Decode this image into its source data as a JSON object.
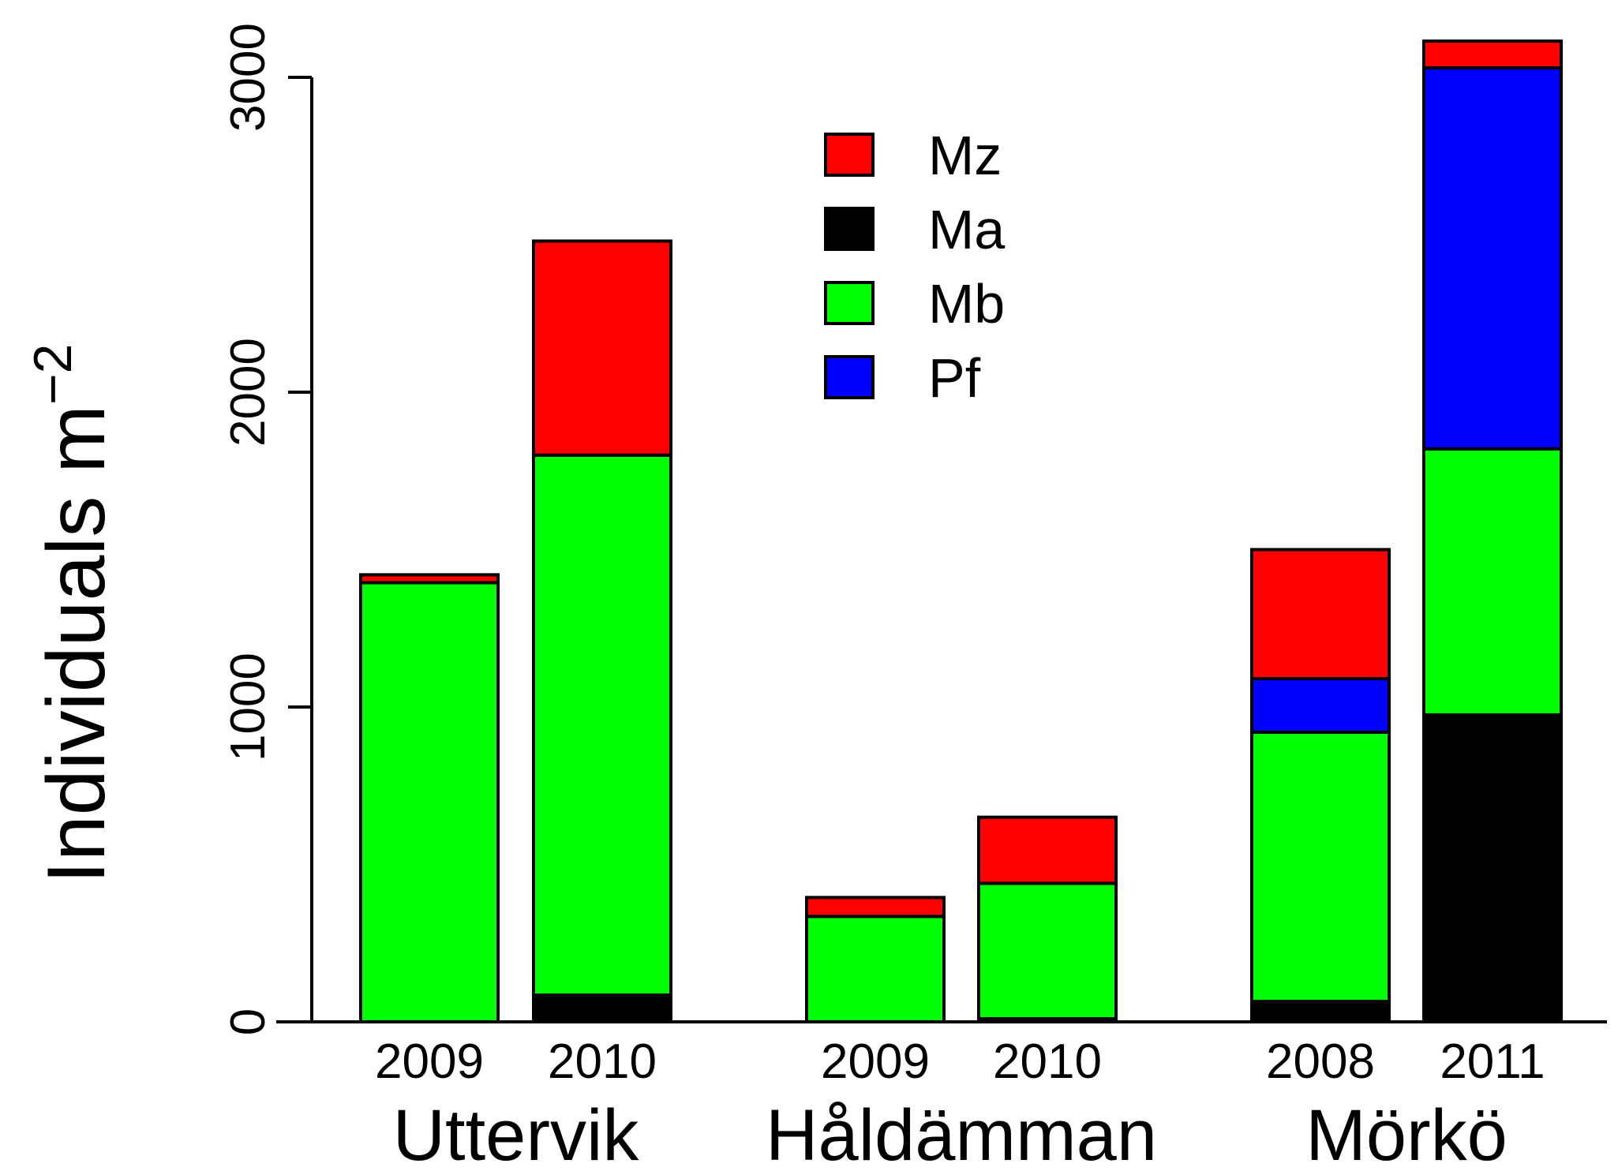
{
  "chart_data": {
    "type": "bar",
    "stacked": true,
    "ylabel": "Individuals m",
    "ylabel_superscript": "−2",
    "ylim": [
      0,
      3150
    ],
    "yticks": [
      0,
      1000,
      2000,
      3000
    ],
    "ytick_labels": [
      "0",
      "1000",
      "2000",
      "3000"
    ],
    "groups": [
      {
        "name": "Uttervik",
        "years": [
          "2009",
          "2010"
        ]
      },
      {
        "name": "Håldämman",
        "years": [
          "2009",
          "2010"
        ]
      },
      {
        "name": "Mörkö",
        "years": [
          "2008",
          "2011"
        ]
      }
    ],
    "categories": [
      "Uttervik 2009",
      "Uttervik 2010",
      "Håldämman 2009",
      "Håldämman 2010",
      "Mörkö 2008",
      "Mörkö 2011"
    ],
    "series": [
      {
        "name": "Ma",
        "color": "#000000",
        "values": [
          0,
          85,
          0,
          10,
          65,
          975
        ]
      },
      {
        "name": "Mb",
        "color": "#00ff00",
        "values": [
          1395,
          1715,
          335,
          430,
          855,
          845
        ]
      },
      {
        "name": "Pf",
        "color": "#0000ff",
        "values": [
          0,
          0,
          0,
          0,
          170,
          1210
        ]
      },
      {
        "name": "Mz",
        "color": "#ff0000",
        "values": [
          25,
          680,
          60,
          210,
          410,
          85
        ]
      }
    ],
    "legend": {
      "placement": "top-center",
      "order": [
        "Mz",
        "Ma",
        "Mb",
        "Pf"
      ]
    }
  }
}
